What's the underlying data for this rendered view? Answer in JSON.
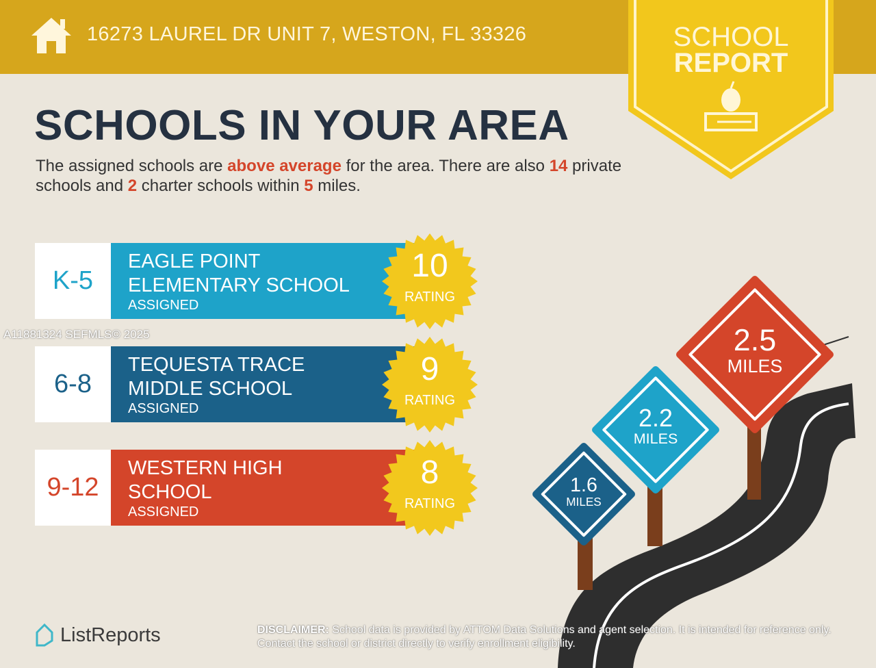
{
  "header": {
    "address": "16273 LAUREL DR UNIT 7, WESTON, FL 33326",
    "home_icon": "home-icon"
  },
  "badge": {
    "line1": "SCHOOL",
    "line2": "REPORT",
    "icon": "apple-on-books-icon"
  },
  "title": "SCHOOLS IN YOUR AREA",
  "summary": {
    "p1": "The assigned schools are ",
    "highlight": "above average",
    "p2": " for the area. There are also ",
    "private_count": "14",
    "p3": " private schools and ",
    "charter_count": "2",
    "p4": " charter schools within ",
    "miles": "5",
    "p5": " miles."
  },
  "schools": [
    {
      "grades": "K-5",
      "name1": "EAGLE POINT",
      "name2": "ELEMENTARY SCHOOL",
      "status": "ASSIGNED",
      "rating": "10",
      "rating_label": "RATING",
      "color": "#1ea3c9"
    },
    {
      "grades": "6-8",
      "name1": "TEQUESTA TRACE",
      "name2": "MIDDLE SCHOOL",
      "status": "ASSIGNED",
      "rating": "9",
      "rating_label": "RATING",
      "color": "#1b6189"
    },
    {
      "grades": "9-12",
      "name1": "WESTERN HIGH",
      "name2": "SCHOOL",
      "status": "ASSIGNED",
      "rating": "8",
      "rating_label": "RATING",
      "color": "#d4452a"
    }
  ],
  "watermark": "A11881324  SEFMLS© 2025",
  "signs": [
    {
      "value": "1.6",
      "unit": "MILES",
      "color": "#1b6189"
    },
    {
      "value": "2.2",
      "unit": "MILES",
      "color": "#1ea3c9"
    },
    {
      "value": "2.5",
      "unit": "MILES",
      "color": "#d4452a"
    }
  ],
  "footer": {
    "logo": "ListReports",
    "disclaimer_label": "DISCLAIMER:",
    "disclaimer": " School data is provided by ATTOM Data Solutions and agent selection. It is intended for reference only. Contact the school or district directly to verify enrollment eligibility."
  }
}
